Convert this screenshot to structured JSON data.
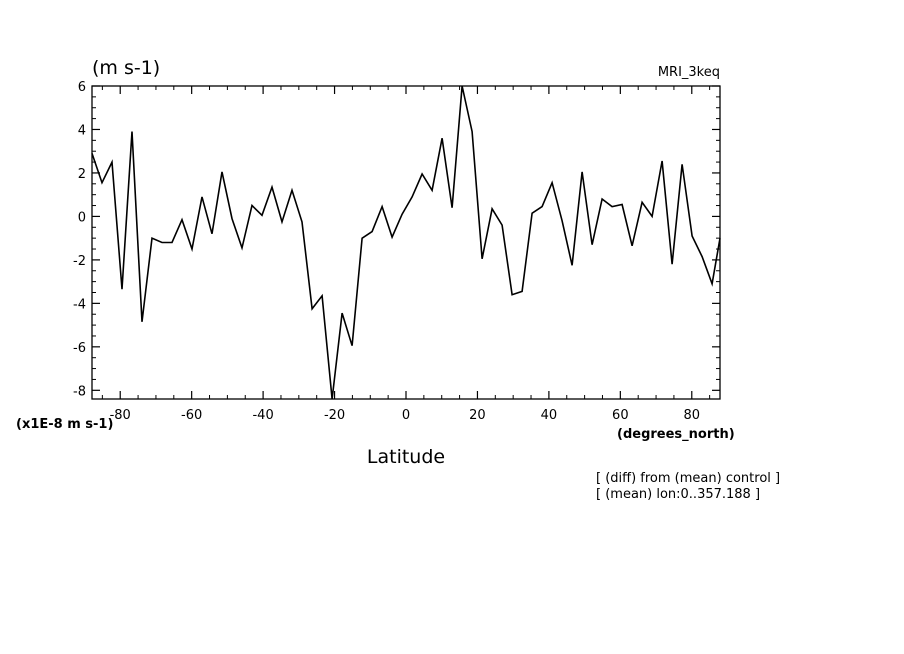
{
  "chart_data": {
    "type": "line",
    "title": "",
    "units_label": "(m s-1)",
    "model_label": "MRI_3keq",
    "xlabel": "Latitude",
    "x_units": "(degrees_north)",
    "y_scale_label": "(x1E-8 m s-1)",
    "notes": [
      "[ (diff) from (mean) control ]",
      "[ (mean) lon:0..357.188 ]"
    ],
    "xlim": [
      -87.9,
      87.9
    ],
    "ylim": [
      -8.4,
      6
    ],
    "x_ticks": [
      -80,
      -60,
      -40,
      -20,
      0,
      20,
      40,
      60,
      80
    ],
    "x_tick_labels": [
      "-80",
      "-60",
      "-40",
      "-20",
      "0",
      "20",
      "40",
      "60",
      "80"
    ],
    "y_ticks": [
      -8,
      -6,
      -4,
      -2,
      0,
      2,
      4,
      6
    ],
    "y_tick_labels": [
      "-8",
      "-6",
      "-4",
      "-2",
      "0",
      "2",
      "4",
      "6"
    ],
    "grid": false,
    "series": [
      {
        "x": [
          -87.9,
          -85.1,
          -82.3,
          -79.5,
          -76.7,
          -73.9,
          -71.1,
          -68.3,
          -65.5,
          -62.7,
          -59.9,
          -57.1,
          -54.3,
          -51.5,
          -48.7,
          -45.9,
          -43.1,
          -40.3,
          -37.5,
          -34.7,
          -31.9,
          -29.1,
          -26.3,
          -23.5,
          -20.7,
          -17.9,
          -15.1,
          -12.3,
          -9.5,
          -6.7,
          -3.9,
          -1.1,
          1.7,
          4.5,
          7.3,
          10.1,
          12.9,
          15.7,
          18.5,
          21.3,
          24.1,
          26.9,
          29.7,
          32.5,
          35.3,
          38.1,
          40.9,
          43.7,
          46.5,
          49.3,
          52.1,
          54.9,
          57.7,
          60.5,
          63.3,
          66.1,
          68.9,
          71.7,
          74.5,
          77.3,
          80.1,
          82.9,
          85.7,
          87.9
        ],
        "y": [
          2.9,
          1.55,
          2.5,
          -3.35,
          3.9,
          -4.85,
          -1.0,
          -1.2,
          -1.2,
          -0.15,
          -1.5,
          0.9,
          -0.8,
          2.05,
          -0.1,
          -1.45,
          0.5,
          0.05,
          1.35,
          -0.25,
          1.2,
          -0.25,
          -4.25,
          -3.65,
          -8.4,
          -4.45,
          -5.95,
          -1.0,
          -0.7,
          0.45,
          -0.95,
          0.1,
          0.9,
          1.95,
          1.2,
          3.6,
          0.4,
          6.0,
          3.9,
          -1.95,
          0.35,
          -0.4,
          -3.6,
          -3.45,
          0.15,
          0.45,
          1.55,
          -0.2,
          -2.25,
          2.05,
          -1.3,
          0.8,
          0.45,
          0.55,
          -1.35,
          0.65,
          0.0,
          2.55,
          -2.2,
          2.4,
          -0.9,
          -1.85,
          -3.1,
          -1.0
        ]
      }
    ]
  }
}
